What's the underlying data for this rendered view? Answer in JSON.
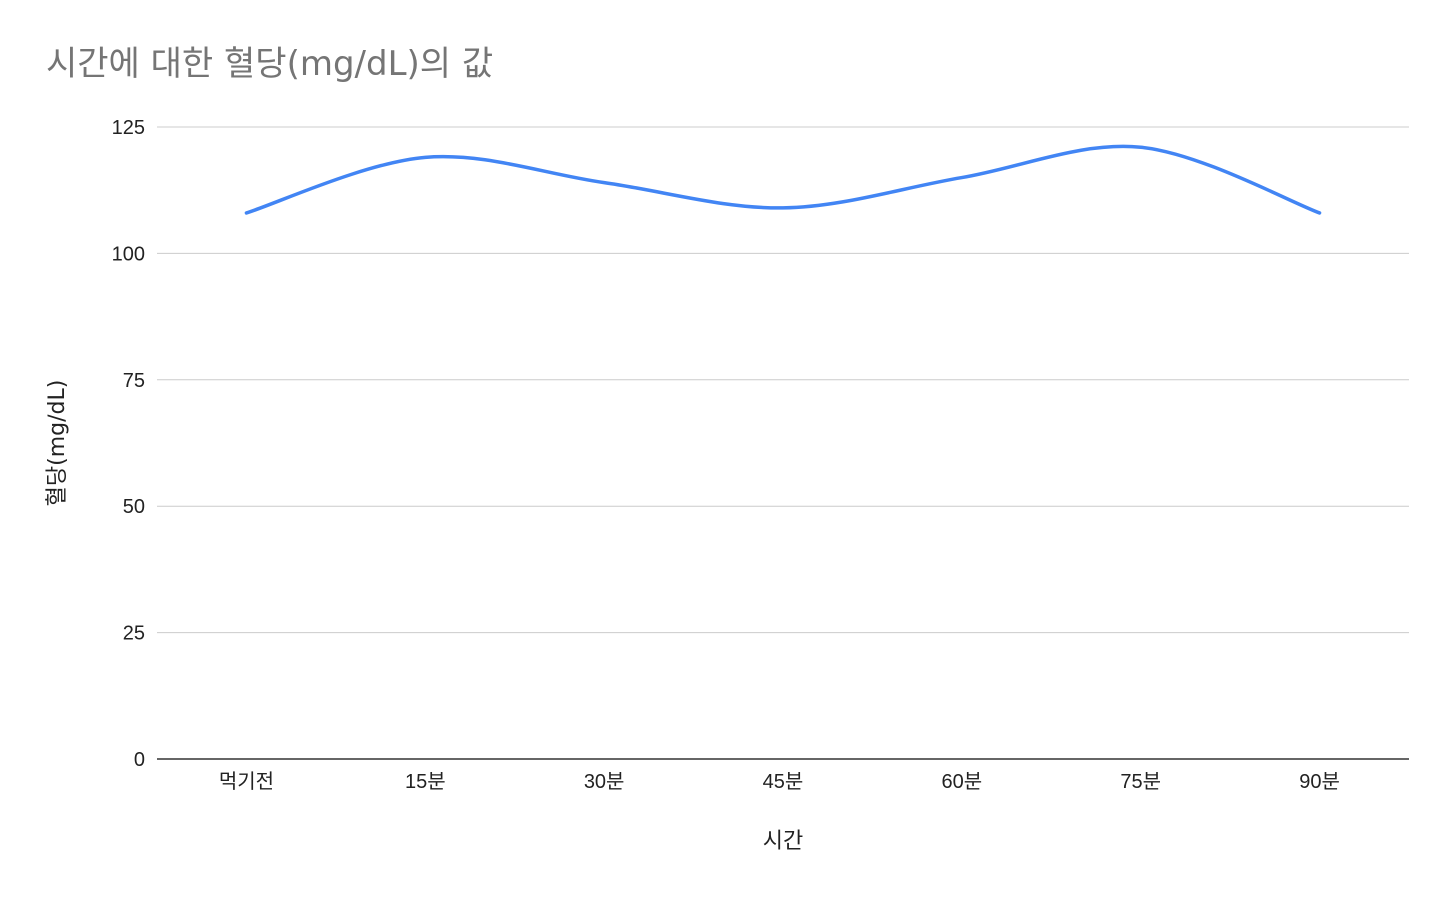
{
  "chart_data": {
    "type": "line",
    "title": "시간에 대한 혈당(mg/dL)의 값",
    "xlabel": "시간",
    "ylabel": "혈당(mg/dL)",
    "categories": [
      "먹기전",
      "15분",
      "30분",
      "45분",
      "60분",
      "75분",
      "90분"
    ],
    "series": [
      {
        "values": [
          108,
          119,
          114,
          109,
          115,
          121,
          108
        ],
        "color": "#4285f4"
      }
    ],
    "ylim": [
      0,
      125
    ],
    "yticks": [
      0,
      25,
      50,
      75,
      100,
      125
    ],
    "grid": true,
    "line_style": "smooth",
    "colors": {
      "title": "#757575",
      "grid": "#cccccc",
      "axis": "#333333",
      "text": "#222222"
    }
  }
}
